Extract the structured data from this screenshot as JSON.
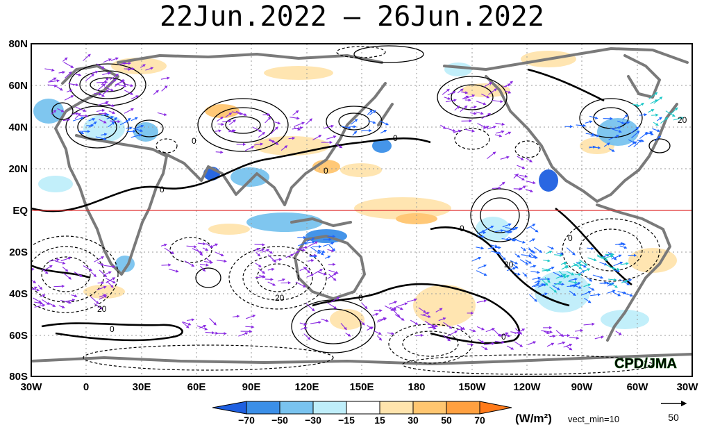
{
  "title": "22Jun.2022 – 26Jun.2022",
  "map": {
    "lon_ticks": [
      "30W",
      "0",
      "30E",
      "60E",
      "90E",
      "120E",
      "150E",
      "180",
      "150W",
      "120W",
      "90W",
      "60W",
      "30W"
    ],
    "lat_ticks": [
      "80N",
      "60N",
      "40N",
      "20N",
      "EQ",
      "20S",
      "40S",
      "60S",
      "80S"
    ],
    "equator_color": "#e03030",
    "coastline_color": "#7a7a7a",
    "contour_labels": [
      "0",
      "0",
      "0",
      "0",
      "0",
      "0",
      "0",
      "20",
      "20",
      "20",
      "20",
      "0",
      "0"
    ],
    "credit": "CPD/JMA",
    "credit_color": "#22cc22",
    "vector_colors": [
      "#8a2be2",
      "#1e64ff",
      "#1ec8c8",
      "#00d050"
    ]
  },
  "colorbar": {
    "unit": "(W/m²)",
    "labels": [
      "−70",
      "−50",
      "−30",
      "−15",
      "15",
      "30",
      "50",
      "70"
    ],
    "colors": [
      "#1e5fe0",
      "#3b8fe8",
      "#79c3ef",
      "#bfeefa",
      "#ffffff",
      "#ffe4ad",
      "#ffc670",
      "#ffa040",
      "#ff7a1a"
    ],
    "vect_min": "vect_min=10",
    "ref_value": "50"
  }
}
